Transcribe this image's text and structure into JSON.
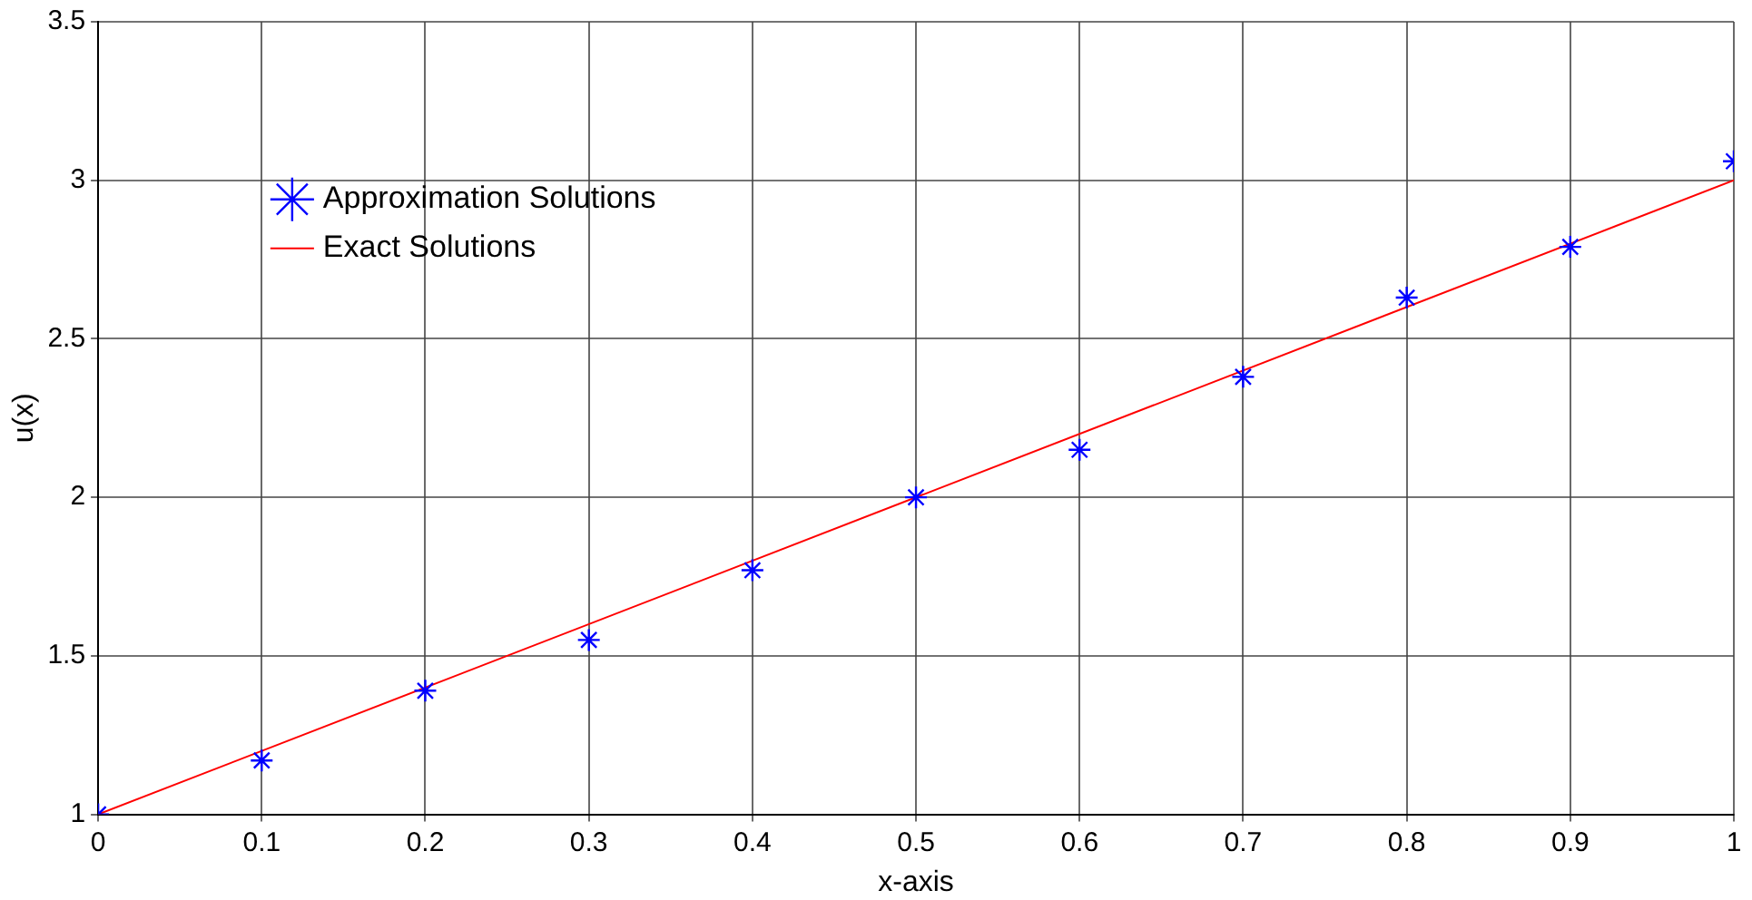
{
  "chart_data": {
    "type": "line",
    "xlabel": "x-axis",
    "ylabel": "u(x)",
    "xlim": [
      0,
      1
    ],
    "xticks": [
      0,
      0.1,
      0.2,
      0.3,
      0.4,
      0.5,
      0.6,
      0.7,
      0.8,
      0.9,
      1
    ],
    "ylim": [
      1,
      3.5
    ],
    "yticks": [
      1,
      1.5,
      2,
      2.5,
      3,
      3.5
    ],
    "grid": true,
    "legend": "top left",
    "series": [
      {
        "name": "Approximation Solutions",
        "type": "scatter",
        "marker": "cross",
        "color": "#0000ff",
        "x": [
          0,
          0.1,
          0.2,
          0.3,
          0.4,
          0.5,
          0.6,
          0.7,
          0.8,
          0.9,
          1
        ],
        "values": [
          1.0,
          1.17,
          1.39,
          1.55,
          1.77,
          2.0,
          2.15,
          2.38,
          2.63,
          2.79,
          3.06
        ]
      },
      {
        "name": "Exact Solutions",
        "marker": "none",
        "line_style": "solid",
        "color": "#ff0000",
        "x": [
          0,
          1
        ],
        "values": [
          1,
          3
        ]
      }
    ]
  }
}
